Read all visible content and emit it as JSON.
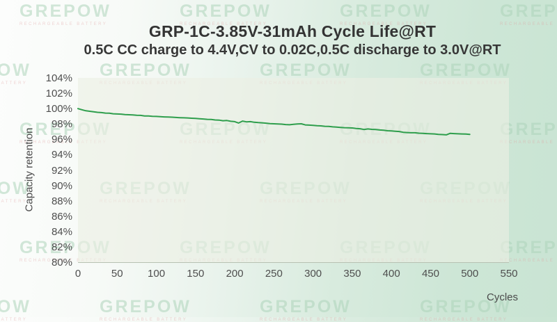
{
  "watermark": {
    "text": "GREPOW",
    "subtext": "RECHARGEABLE BATTERY"
  },
  "chart_data": {
    "type": "line",
    "title": "GRP-1C-3.85V-31mAh Cycle Life@RT",
    "subtitle": "0.5C CC charge to 4.4V,CV to 0.02C,0.5C discharge to 3.0V@RT",
    "xlabel": "Cycles",
    "ylabel": "Capacity retention",
    "xlim": [
      0,
      550
    ],
    "ylim": [
      80,
      104
    ],
    "x_ticks": [
      "0",
      "50",
      "100",
      "150",
      "200",
      "250",
      "300",
      "350",
      "400",
      "450",
      "500",
      "550"
    ],
    "y_ticks": [
      "104%",
      "102%",
      "100%",
      "98%",
      "96%",
      "94%",
      "92%",
      "90%",
      "88%",
      "86%",
      "84%",
      "82%",
      "80%"
    ],
    "grid": false,
    "legend": "none",
    "line_color": "#2e9e4c",
    "plot_background": "#eceFe4",
    "series": [
      {
        "name": "Capacity retention",
        "points": [
          [
            0,
            100.0
          ],
          [
            5,
            99.85
          ],
          [
            10,
            99.72
          ],
          [
            15,
            99.65
          ],
          [
            20,
            99.58
          ],
          [
            25,
            99.52
          ],
          [
            30,
            99.48
          ],
          [
            35,
            99.42
          ],
          [
            40,
            99.4
          ],
          [
            45,
            99.33
          ],
          [
            50,
            99.3
          ],
          [
            55,
            99.28
          ],
          [
            60,
            99.22
          ],
          [
            65,
            99.2
          ],
          [
            70,
            99.18
          ],
          [
            75,
            99.13
          ],
          [
            80,
            99.12
          ],
          [
            85,
            99.05
          ],
          [
            90,
            99.05
          ],
          [
            95,
            99.0
          ],
          [
            100,
            98.98
          ],
          [
            105,
            98.95
          ],
          [
            110,
            98.92
          ],
          [
            115,
            98.9
          ],
          [
            120,
            98.88
          ],
          [
            125,
            98.85
          ],
          [
            130,
            98.82
          ],
          [
            135,
            98.8
          ],
          [
            140,
            98.78
          ],
          [
            145,
            98.75
          ],
          [
            150,
            98.72
          ],
          [
            155,
            98.68
          ],
          [
            160,
            98.65
          ],
          [
            165,
            98.6
          ],
          [
            170,
            98.58
          ],
          [
            175,
            98.52
          ],
          [
            180,
            98.5
          ],
          [
            185,
            98.42
          ],
          [
            190,
            98.45
          ],
          [
            195,
            98.35
          ],
          [
            200,
            98.3
          ],
          [
            205,
            98.12
          ],
          [
            210,
            98.38
          ],
          [
            215,
            98.28
          ],
          [
            220,
            98.3
          ],
          [
            225,
            98.22
          ],
          [
            230,
            98.18
          ],
          [
            235,
            98.15
          ],
          [
            240,
            98.1
          ],
          [
            245,
            98.05
          ],
          [
            250,
            98.02
          ],
          [
            255,
            98.0
          ],
          [
            260,
            97.98
          ],
          [
            265,
            97.92
          ],
          [
            270,
            97.9
          ],
          [
            275,
            97.95
          ],
          [
            280,
            98.0
          ],
          [
            285,
            98.02
          ],
          [
            290,
            97.88
          ],
          [
            295,
            97.85
          ],
          [
            300,
            97.82
          ],
          [
            305,
            97.78
          ],
          [
            310,
            97.75
          ],
          [
            315,
            97.7
          ],
          [
            320,
            97.68
          ],
          [
            325,
            97.62
          ],
          [
            330,
            97.6
          ],
          [
            335,
            97.55
          ],
          [
            340,
            97.52
          ],
          [
            345,
            97.5
          ],
          [
            350,
            97.48
          ],
          [
            355,
            97.42
          ],
          [
            360,
            97.38
          ],
          [
            365,
            97.28
          ],
          [
            370,
            97.35
          ],
          [
            375,
            97.3
          ],
          [
            380,
            97.28
          ],
          [
            385,
            97.22
          ],
          [
            390,
            97.18
          ],
          [
            395,
            97.12
          ],
          [
            400,
            97.1
          ],
          [
            405,
            97.05
          ],
          [
            410,
            97.02
          ],
          [
            415,
            96.92
          ],
          [
            420,
            96.88
          ],
          [
            425,
            96.85
          ],
          [
            430,
            96.85
          ],
          [
            435,
            96.8
          ],
          [
            440,
            96.78
          ],
          [
            445,
            96.75
          ],
          [
            450,
            96.72
          ],
          [
            455,
            96.7
          ],
          [
            460,
            96.65
          ],
          [
            465,
            96.62
          ],
          [
            470,
            96.58
          ],
          [
            475,
            96.78
          ],
          [
            480,
            96.75
          ],
          [
            485,
            96.72
          ],
          [
            490,
            96.7
          ],
          [
            495,
            96.68
          ],
          [
            500,
            96.65
          ]
        ]
      }
    ]
  }
}
